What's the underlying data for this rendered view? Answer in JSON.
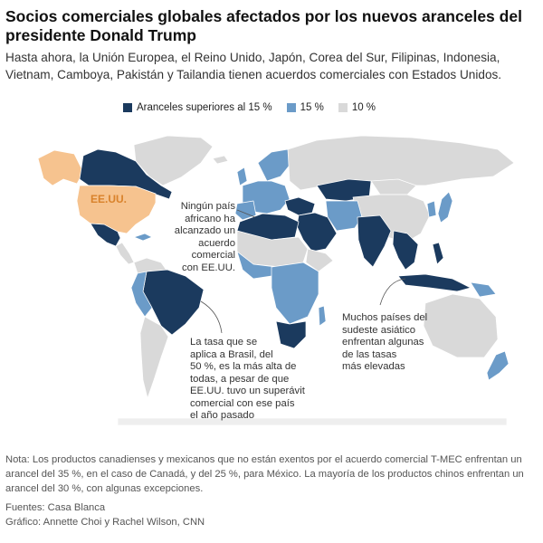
{
  "header": {
    "title": "Socios comerciales globales afectados por los nuevos aranceles del presidente Donald Trump",
    "subtitle": "Hasta ahora, la Unión Europea, el Reino Unido, Japón, Corea del Sur, Filipinas, Indonesia, Vietnam, Camboya, Pakistán y Tailandia tienen acuerdos comerciales con Estados Unidos."
  },
  "legend": {
    "items": [
      {
        "label": "Aranceles superiores al 15 %",
        "color": "#1b3a5e"
      },
      {
        "label": "15 %",
        "color": "#6b9bc8"
      },
      {
        "label": "10 %",
        "color": "#d9d9d9"
      }
    ]
  },
  "map": {
    "us_label": "EE.UU.",
    "colors": {
      "high": "#1b3a5e",
      "mid": "#6b9bc8",
      "low": "#d9d9d9",
      "usa": "#f6c38f",
      "us_text": "#d9822b"
    },
    "annotations": {
      "africa": "Ningún país\nafricano ha\nalcanzado un\nacuerdo\ncomercial\ncon EE.UU.",
      "brazil": "La tasa que se\naplica a Brasil, del\n50 %, es la más alta de\ntodas, a pesar de que\nEE.UU. tuvo un superávit\ncomercial con ese país\nel año pasado",
      "asia": "Muchos países del\nsudeste asiático\nenfrentan algunas\nde las tasas\nmás elevadas"
    }
  },
  "footer": {
    "note": "Nota: Los productos canadienses y mexicanos que no están exentos por el acuerdo comercial T-MEC enfrentan un arancel del 35 %, en el caso de Canadá, y del 25 %, para México. La mayoría de los productos chinos enfrentan un arancel del 30 %, con algunas excepciones.",
    "sources": "Fuentes: Casa Blanca",
    "credits": "Gráfico: Annette Choi y Rachel Wilson, CNN"
  }
}
